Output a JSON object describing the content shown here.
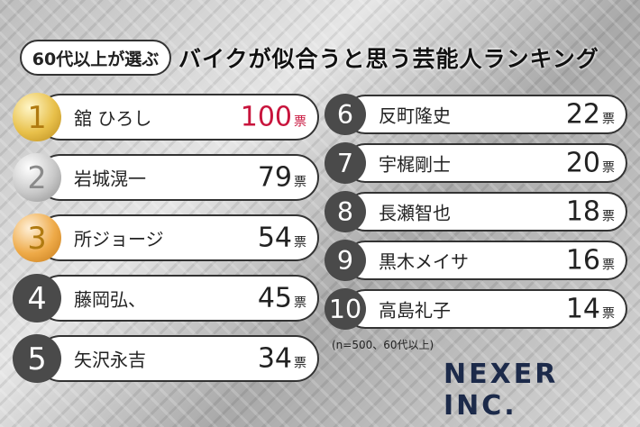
{
  "header": {
    "badge": "60代以上が選ぶ",
    "title": "バイクが似合うと思う芸能人ランキング"
  },
  "rankings": [
    {
      "rank": 1,
      "name": "舘 ひろし",
      "votes": 100,
      "unit": "票"
    },
    {
      "rank": 2,
      "name": "岩城滉一",
      "votes": 79,
      "unit": "票"
    },
    {
      "rank": 3,
      "name": "所ジョージ",
      "votes": 54,
      "unit": "票"
    },
    {
      "rank": 4,
      "name": "藤岡弘、",
      "votes": 45,
      "unit": "票"
    },
    {
      "rank": 5,
      "name": "矢沢永吉",
      "votes": 34,
      "unit": "票"
    },
    {
      "rank": 6,
      "name": "反町隆史",
      "votes": 22,
      "unit": "票"
    },
    {
      "rank": 7,
      "name": "宇梶剛士",
      "votes": 20,
      "unit": "票"
    },
    {
      "rank": 8,
      "name": "長瀬智也",
      "votes": 18,
      "unit": "票"
    },
    {
      "rank": 9,
      "name": "黒木メイサ",
      "votes": 16,
      "unit": "票"
    },
    {
      "rank": 10,
      "name": "高島礼子",
      "votes": 14,
      "unit": "票"
    }
  ],
  "note": "(n=500、60代以上)",
  "logo": "NEXER INC."
}
